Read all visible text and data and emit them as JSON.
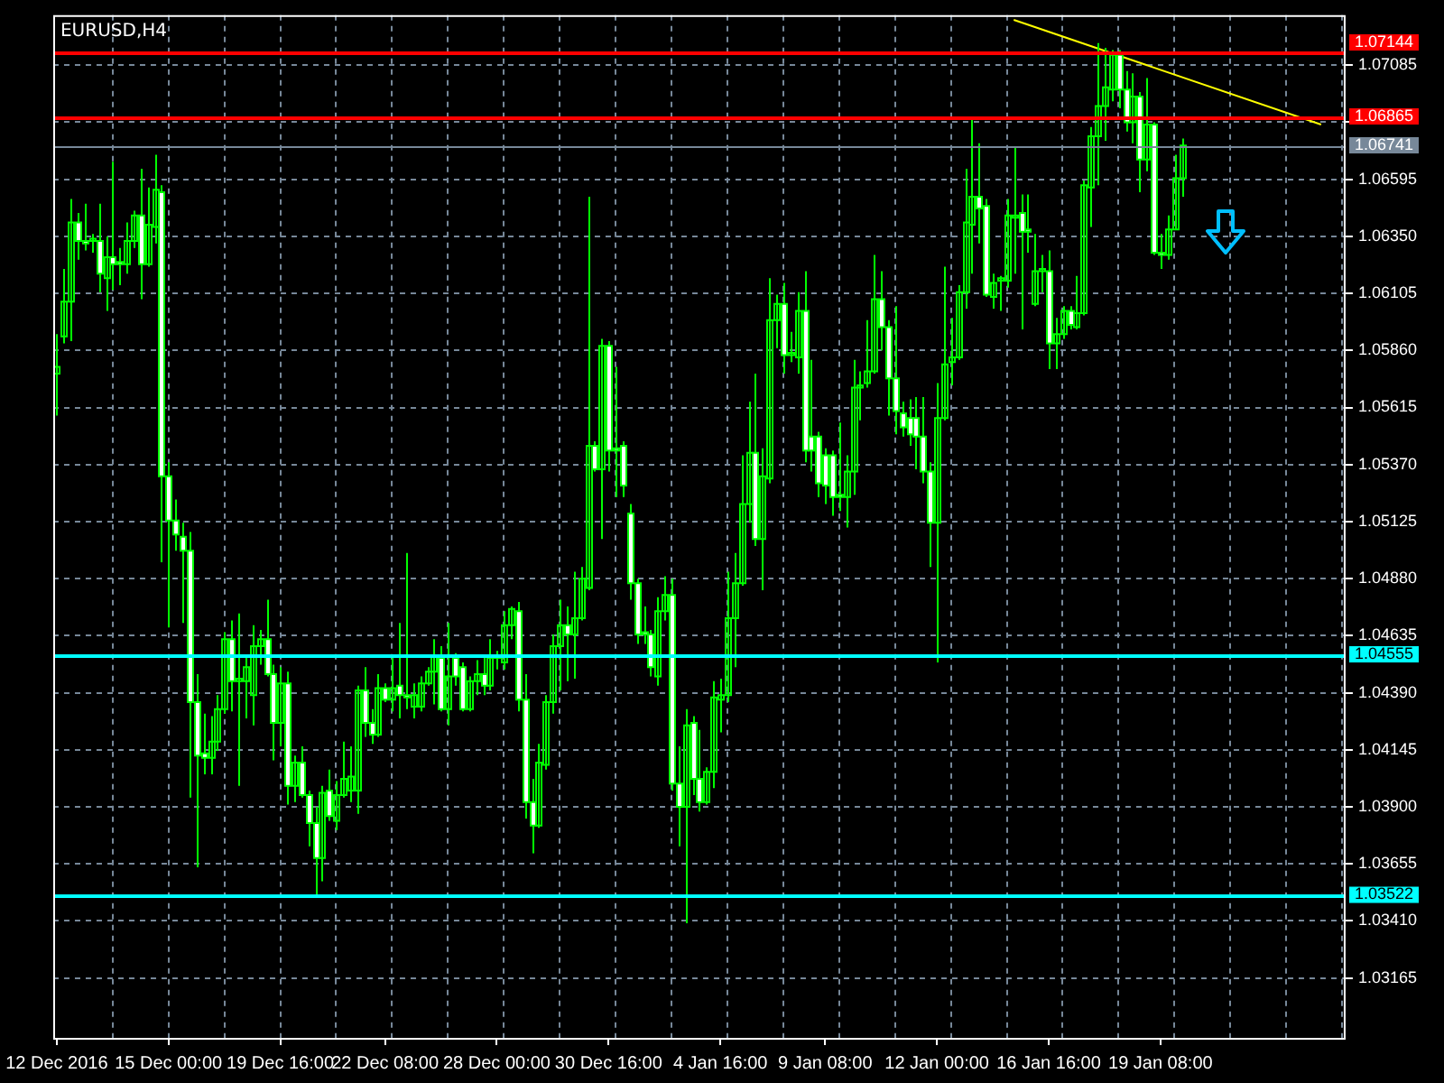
{
  "chart_data": {
    "type": "candlestick",
    "title": "EURUSD,H4",
    "color": "#00ff00",
    "colors": [
      "#00ff00",
      "#00ff00",
      "#00ff00",
      "#ffffff",
      "#ffffff",
      "#00ff00",
      "#ffffff",
      "#00ff00",
      "#ffffff",
      "#ffffff",
      "#00ff00",
      "#00ff00",
      "#ffffff",
      "#00ff00",
      "#00ff00",
      "#ffffff",
      "#ffffff",
      "#ffffff",
      "#ffffff",
      "#ffffff",
      "#ffffff",
      "#ffffff",
      "#00ff00",
      "#00ff00",
      "#00ff00",
      "#ffffff",
      "#00ff00",
      "#00ff00",
      "#00ff00",
      "#00ff00",
      "#ffffff",
      "#ffffff",
      "#00ff00",
      "#ffffff",
      "#00ff00",
      "#ffffff",
      "#ffffff",
      "#ffffff",
      "#00ff00",
      "#ffffff",
      "#00ff00",
      "#00ff00",
      "#00ff00",
      "#00ff00",
      "#ffffff",
      "#ffffff",
      "#00ff00",
      "#ffffff",
      "#00ff00",
      "#ffffff",
      "#ffffff",
      "#00ff00",
      "#00ff00",
      "#00ff00",
      "#00ff00",
      "#ffffff",
      "#00ff00",
      "#ffffff",
      "#ffffff",
      "#00ff00",
      "#00ff00",
      "#ffffff",
      "#00ff00",
      "#00ff00",
      "#00ff00",
      "#00ff00",
      "#ffffff",
      "#ffffff",
      "#ffffff",
      "#00ff00",
      "#00ff00",
      "#00ff00",
      "#00ff00",
      "#ffffff",
      "#00ff00",
      "#00ff00",
      "#00ff00",
      "#ffffff",
      "#00ff00",
      "#ffffff",
      "#ffffff",
      "#ffffff",
      "#ffffff",
      "#ffffff",
      "#ffffff",
      "#ffffff",
      "#00ff00",
      "#00ff00",
      "#ffffff",
      "#ffffff",
      "#00ff00",
      "#ffffff",
      "#ffffff",
      "#00ff00",
      "#00ff00",
      "#00ff00",
      "#00ff00",
      "#00ff00",
      "#00ff00",
      "#00ff00",
      "#ffffff",
      "#00ff00",
      "#00ff00",
      "#00ff00",
      "#ffffff",
      "#00ff00",
      "#00ff00",
      "#ffffff",
      "#ffffff",
      "#ffffff",
      "#ffffff",
      "#ffffff",
      "#ffffff",
      "#00ff00",
      "#00ff00",
      "#00ff00",
      "#00ff00",
      "#00ff00",
      "#ffffff",
      "#ffffff",
      "#ffffff",
      "#ffffff",
      "#ffffff",
      "#ffffff",
      "#ffffff",
      "#ffffff",
      "#00ff00",
      "#00ff00",
      "#00ff00",
      "#00ff00",
      "#00ff00",
      "#00ff00",
      "#ffffff",
      "#ffffff",
      "#00ff00",
      "#00ff00",
      "#00ff00",
      "#00ff00",
      "#ffffff",
      "#ffffff",
      "#00ff00",
      "#00ff00",
      "#ffffff",
      "#00ff00",
      "#00ff00",
      "#ffffff",
      "#00ff00",
      "#00ff00",
      "#00ff00",
      "#00ff00",
      "#00ff00",
      "#00ff00",
      "#ffffff",
      "#ffffff",
      "#00ff00",
      "#ffffff",
      "#00ff00",
      "#ffffff",
      "#ffffff",
      "#00ff00",
      "#00ff00",
      "#00ff00",
      null,
      null,
      null,
      null,
      null,
      null,
      null,
      null,
      null,
      null,
      null,
      null,
      null,
      null,
      null,
      null,
      null,
      null,
      null,
      null,
      null,
      null,
      null
    ],
    "categories": [
      "12 Dec 2016",
      null,
      null,
      null,
      null,
      null,
      null,
      null,
      null,
      null,
      null,
      null,
      null,
      null,
      null,
      null,
      "15 Dec 00:00",
      null,
      null,
      null,
      null,
      null,
      null,
      null,
      null,
      null,
      null,
      null,
      null,
      null,
      null,
      null,
      "19 Dec 16:00",
      null,
      null,
      null,
      null,
      null,
      null,
      null,
      null,
      null,
      null,
      null,
      null,
      null,
      null,
      "22 Dec 08:00",
      null,
      null,
      null,
      null,
      null,
      null,
      null,
      null,
      null,
      null,
      null,
      null,
      null,
      null,
      null,
      "28 Dec 00:00",
      null,
      null,
      null,
      null,
      null,
      null,
      null,
      null,
      null,
      null,
      null,
      null,
      null,
      null,
      null,
      "30 Dec 16:00",
      null,
      null,
      null,
      null,
      null,
      null,
      null,
      null,
      null,
      null,
      null,
      null,
      null,
      null,
      null,
      "4 Jan 16:00",
      null,
      null,
      null,
      null,
      null,
      null,
      null,
      null,
      null,
      null,
      null,
      null,
      null,
      null,
      "9 Jan 08:00",
      null,
      null,
      null,
      null,
      null,
      null,
      null,
      null,
      null,
      null,
      null,
      null,
      null,
      null,
      null,
      "12 Jan 00:00",
      null,
      null,
      null,
      null,
      null,
      null,
      null,
      null,
      null,
      null,
      null,
      null,
      null,
      null,
      null,
      "16 Jan 16:00",
      null,
      null,
      null,
      null,
      null,
      null,
      null,
      null,
      null,
      null,
      null,
      null,
      null,
      null,
      null,
      "19 Jan 08:00",
      null,
      null,
      null,
      null,
      null,
      null,
      null,
      null,
      null,
      null,
      null,
      null,
      null,
      null,
      null,
      null,
      null,
      null,
      null,
      null,
      null,
      null,
      null,
      null,
      null,
      null
    ],
    "ohlc": [
      [
        1.0576,
        1.0593,
        1.0558,
        1.0579
      ],
      [
        1.0592,
        1.0621,
        1.0589,
        1.0607
      ],
      [
        1.0607,
        1.0651,
        1.059,
        1.0641
      ],
      [
        1.0641,
        1.0645,
        1.0625,
        1.0633
      ],
      [
        1.0633,
        1.0649,
        1.0629,
        1.0632
      ],
      [
        1.0633,
        1.0636,
        1.0628,
        1.0634
      ],
      [
        1.0633,
        1.0649,
        1.0611,
        1.0619
      ],
      [
        1.0617,
        1.0635,
        1.0603,
        1.0626
      ],
      [
        1.0626,
        1.0667,
        1.0612,
        1.0623
      ],
      [
        1.0624,
        1.063,
        1.0614,
        1.0623
      ],
      [
        1.0623,
        1.0641,
        1.0619,
        1.0633
      ],
      [
        1.0633,
        1.0646,
        1.063,
        1.0644
      ],
      [
        1.0644,
        1.0664,
        1.0608,
        1.0623
      ],
      [
        1.0623,
        1.0656,
        1.0622,
        1.064
      ],
      [
        1.0639,
        1.067,
        1.0632,
        1.0655
      ],
      [
        1.0654,
        1.0657,
        1.0495,
        1.0532
      ],
      [
        1.0532,
        1.0538,
        1.0467,
        1.0513
      ],
      [
        1.0513,
        1.0522,
        1.05,
        1.0507
      ],
      [
        1.0506,
        1.0512,
        1.0469,
        1.05
      ],
      [
        1.05,
        1.0508,
        1.0394,
        1.0435
      ],
      [
        1.0435,
        1.0447,
        1.0364,
        1.0412
      ],
      [
        1.0413,
        1.043,
        1.0404,
        1.0411
      ],
      [
        1.0411,
        1.0429,
        1.0404,
        1.0418
      ],
      [
        1.0418,
        1.0438,
        1.0414,
        1.0432
      ],
      [
        1.0432,
        1.0465,
        1.043,
        1.0462
      ],
      [
        1.0462,
        1.047,
        1.0431,
        1.0444
      ],
      [
        1.0444,
        1.0473,
        1.0399,
        1.0445
      ],
      [
        1.0444,
        1.0454,
        1.0428,
        1.045
      ],
      [
        1.0438,
        1.0468,
        1.0425,
        1.0459
      ],
      [
        1.0459,
        1.0466,
        1.0451,
        1.0462
      ],
      [
        1.0462,
        1.0479,
        1.0446,
        1.0447
      ],
      [
        1.0447,
        1.0451,
        1.041,
        1.0426
      ],
      [
        1.0426,
        1.045,
        1.0416,
        1.0443
      ],
      [
        1.0443,
        1.0448,
        1.0391,
        1.0399
      ],
      [
        1.0399,
        1.0412,
        1.0392,
        1.0409
      ],
      [
        1.0409,
        1.0416,
        1.0394,
        1.0395
      ],
      [
        1.0395,
        1.0397,
        1.0373,
        1.0383
      ],
      [
        1.0383,
        1.039,
        1.0351,
        1.0368
      ],
      [
        1.0368,
        1.0399,
        1.0358,
        1.0396
      ],
      [
        1.0397,
        1.0406,
        1.0384,
        1.0386
      ],
      [
        1.0384,
        1.0401,
        1.038,
        1.0395
      ],
      [
        1.0395,
        1.0418,
        1.0394,
        1.0402
      ],
      [
        1.0397,
        1.0416,
        1.0392,
        1.0403
      ],
      [
        1.0397,
        1.0442,
        1.0387,
        1.044
      ],
      [
        1.044,
        1.045,
        1.042,
        1.0426
      ],
      [
        1.0426,
        1.0432,
        1.0417,
        1.0421
      ],
      [
        1.0421,
        1.0447,
        1.042,
        1.0441
      ],
      [
        1.0441,
        1.0443,
        1.0435,
        1.0436
      ],
      [
        1.0436,
        1.0455,
        1.0431,
        1.0441
      ],
      [
        1.0442,
        1.0469,
        1.0428,
        1.0438
      ],
      [
        1.0438,
        1.0499,
        1.0432,
        1.0437
      ],
      [
        1.0433,
        1.0443,
        1.0428,
        1.0438
      ],
      [
        1.0433,
        1.0446,
        1.0431,
        1.0443
      ],
      [
        1.0443,
        1.045,
        1.0442,
        1.0448
      ],
      [
        1.0448,
        1.0462,
        1.0434,
        1.0455
      ],
      [
        1.0454,
        1.0459,
        1.0431,
        1.0432
      ],
      [
        1.0432,
        1.0469,
        1.0425,
        1.0446
      ],
      [
        1.0454,
        1.0456,
        1.0442,
        1.0446
      ],
      [
        1.045,
        1.0452,
        1.0431,
        1.0432
      ],
      [
        1.0432,
        1.0446,
        1.0431,
        1.0444
      ],
      [
        1.0444,
        1.0453,
        1.0438,
        1.0447
      ],
      [
        1.0447,
        1.0454,
        1.0438,
        1.0442
      ],
      [
        1.0442,
        1.0462,
        1.044,
        1.0454
      ],
      [
        1.0454,
        1.0457,
        1.0449,
        1.0455
      ],
      [
        1.0452,
        1.0474,
        1.0449,
        1.0468
      ],
      [
        1.0468,
        1.0476,
        1.0462,
        1.0475
      ],
      [
        1.0474,
        1.0478,
        1.0431,
        1.0436
      ],
      [
        1.0436,
        1.0447,
        1.0385,
        1.0392
      ],
      [
        1.0392,
        1.0402,
        1.037,
        1.0382
      ],
      [
        1.0382,
        1.0417,
        1.0381,
        1.0409
      ],
      [
        1.0408,
        1.0438,
        1.0406,
        1.0435
      ],
      [
        1.0435,
        1.0464,
        1.043,
        1.0459
      ],
      [
        1.0459,
        1.0479,
        1.044,
        1.0468
      ],
      [
        1.0468,
        1.0476,
        1.0444,
        1.0464
      ],
      [
        1.0464,
        1.0491,
        1.0445,
        1.0471
      ],
      [
        1.0471,
        1.0493,
        1.047,
        1.0488
      ],
      [
        1.0484,
        1.0652,
        1.0483,
        1.0545
      ],
      [
        1.0545,
        1.0547,
        1.0534,
        1.0535
      ],
      [
        1.0535,
        1.0591,
        1.0505,
        1.0588
      ],
      [
        1.0588,
        1.059,
        1.0534,
        1.0543
      ],
      [
        1.0544,
        1.0579,
        1.0523,
        1.0543
      ],
      [
        1.0545,
        1.0547,
        1.0523,
        1.0528
      ],
      [
        1.0516,
        1.052,
        1.0479,
        1.0486
      ],
      [
        1.0486,
        1.0488,
        1.046,
        1.0464
      ],
      [
        1.0465,
        1.0476,
        1.046,
        1.0464
      ],
      [
        1.0464,
        1.0466,
        1.0446,
        1.045
      ],
      [
        1.0446,
        1.048,
        1.0442,
        1.0474
      ],
      [
        1.0474,
        1.0489,
        1.047,
        1.0481
      ],
      [
        1.0481,
        1.0488,
        1.0397,
        1.04
      ],
      [
        1.04,
        1.0416,
        1.0373,
        1.039
      ],
      [
        1.039,
        1.0432,
        1.034,
        1.0425
      ],
      [
        1.0426,
        1.0429,
        1.0395,
        1.0402
      ],
      [
        1.0402,
        1.0423,
        1.0388,
        1.0392
      ],
      [
        1.0392,
        1.0407,
        1.0391,
        1.0405
      ],
      [
        1.0405,
        1.0444,
        1.0398,
        1.0437
      ],
      [
        1.0436,
        1.0445,
        1.0422,
        1.0438
      ],
      [
        1.0438,
        1.0491,
        1.0435,
        1.0471
      ],
      [
        1.0471,
        1.0499,
        1.045,
        1.0486
      ],
      [
        1.0486,
        1.0541,
        1.0485,
        1.052
      ],
      [
        1.052,
        1.0564,
        1.0512,
        1.0542
      ],
      [
        1.0542,
        1.0576,
        1.0502,
        1.0505
      ],
      [
        1.0505,
        1.0544,
        1.0483,
        1.0532
      ],
      [
        1.0531,
        1.0617,
        1.0529,
        1.0599
      ],
      [
        1.0599,
        1.061,
        1.0587,
        1.0606
      ],
      [
        1.0606,
        1.0615,
        1.0576,
        1.0584
      ],
      [
        1.0584,
        1.0594,
        1.0581,
        1.0585
      ],
      [
        1.0583,
        1.0611,
        1.0576,
        1.0603
      ],
      [
        1.0603,
        1.062,
        1.0538,
        1.0543
      ],
      [
        1.0549,
        1.0582,
        1.0534,
        1.0543
      ],
      [
        1.0549,
        1.0551,
        1.0523,
        1.0529
      ],
      [
        1.0541,
        1.0544,
        1.052,
        1.0528
      ],
      [
        1.0541,
        1.0543,
        1.0515,
        1.0523
      ],
      [
        1.0524,
        1.0555,
        1.0517,
        1.0523
      ],
      [
        1.0523,
        1.0541,
        1.051,
        1.0534
      ],
      [
        1.0534,
        1.0582,
        1.0524,
        1.057
      ],
      [
        1.057,
        1.0577,
        1.0556,
        1.0571
      ],
      [
        1.0572,
        1.0599,
        1.057,
        1.0577
      ],
      [
        1.0577,
        1.0627,
        1.0576,
        1.0608
      ],
      [
        1.0608,
        1.062,
        1.0586,
        1.0596
      ],
      [
        1.0596,
        1.0599,
        1.0558,
        1.0574
      ],
      [
        1.0574,
        1.0605,
        1.055,
        1.056
      ],
      [
        1.0559,
        1.0564,
        1.0549,
        1.0553
      ],
      [
        1.0557,
        1.0565,
        1.0545,
        1.055
      ],
      [
        1.0557,
        1.0566,
        1.0535,
        1.0549
      ],
      [
        1.0549,
        1.0566,
        1.0529,
        1.0534
      ],
      [
        1.0534,
        1.0538,
        1.0493,
        1.0512
      ],
      [
        1.0512,
        1.0572,
        1.0452,
        1.0557
      ],
      [
        1.0557,
        1.0622,
        1.0556,
        1.058
      ],
      [
        1.0581,
        1.06,
        1.0571,
        1.0583
      ],
      [
        1.0583,
        1.0614,
        1.0582,
        1.0611
      ],
      [
        1.0611,
        1.0664,
        1.0604,
        1.0641
      ],
      [
        1.064,
        1.0685,
        1.0619,
        1.0652
      ],
      [
        1.0652,
        1.0675,
        1.0632,
        1.0647
      ],
      [
        1.0648,
        1.0651,
        1.0609,
        1.061
      ],
      [
        1.0609,
        1.0619,
        1.0604,
        1.0615
      ],
      [
        1.0616,
        1.0618,
        1.0603,
        1.0617
      ],
      [
        1.0616,
        1.0651,
        1.0613,
        1.0644
      ],
      [
        1.0643,
        1.0673,
        1.0619,
        1.0644
      ],
      [
        1.0645,
        1.0653,
        1.0595,
        1.0637
      ],
      [
        1.0638,
        1.0653,
        1.0628,
        1.0637
      ],
      [
        1.0606,
        1.0636,
        1.0605,
        1.062
      ],
      [
        1.062,
        1.0627,
        1.0611,
        1.0621
      ],
      [
        1.062,
        1.0629,
        1.0578,
        1.0589
      ],
      [
        1.0589,
        1.06,
        1.0578,
        1.0593
      ],
      [
        1.0593,
        1.0605,
        1.0591,
        1.0603
      ],
      [
        1.0603,
        1.0605,
        1.0595,
        1.0597
      ],
      [
        1.0596,
        1.0618,
        1.0595,
        1.0602
      ],
      [
        1.0602,
        1.0659,
        1.0601,
        1.0657
      ],
      [
        1.0656,
        1.0682,
        1.0639,
        1.0678
      ],
      [
        1.0678,
        1.0718,
        1.0657,
        1.0691
      ],
      [
        1.0691,
        1.0716,
        1.0676,
        1.0699
      ],
      [
        1.0698,
        1.0715,
        1.0693,
        1.0713
      ],
      [
        1.0713,
        1.0715,
        1.069,
        1.0698
      ],
      [
        1.0698,
        1.0706,
        1.068,
        1.0684
      ],
      [
        1.0684,
        1.0705,
        1.0675,
        1.0695
      ],
      [
        1.0695,
        1.0697,
        1.0654,
        1.0668
      ],
      [
        1.0668,
        1.0703,
        1.0663,
        1.0683
      ],
      [
        1.0683,
        1.0684,
        1.0627,
        1.0628
      ],
      [
        1.0628,
        1.0636,
        1.0621,
        1.0627
      ],
      [
        1.0627,
        1.0644,
        1.0625,
        1.0638
      ],
      [
        1.0638,
        1.067,
        1.0638,
        1.066
      ],
      [
        1.066,
        1.0677,
        1.0652,
        1.0674
      ],
      null,
      null,
      null,
      null,
      null,
      null,
      null,
      null,
      null,
      null,
      null,
      null,
      null,
      null,
      null,
      null,
      null,
      null,
      null,
      null,
      null,
      null,
      null
    ],
    "series": [
      {
        "type": "line",
        "color": "#ffff00",
        "values": [
          null,
          null,
          null,
          null,
          null,
          null,
          null,
          null,
          null,
          null,
          null,
          null,
          null,
          null,
          null,
          null,
          null,
          null,
          null,
          null,
          null,
          null,
          null,
          null,
          null,
          null,
          null,
          null,
          null,
          null,
          null,
          null,
          null,
          null,
          null,
          null,
          null,
          null,
          null,
          null,
          null,
          null,
          null,
          null,
          null,
          null,
          null,
          null,
          null,
          null,
          null,
          null,
          null,
          null,
          null,
          null,
          null,
          null,
          null,
          null,
          null,
          null,
          null,
          null,
          null,
          null,
          null,
          null,
          null,
          null,
          null,
          null,
          null,
          null,
          null,
          null,
          null,
          null,
          null,
          null,
          null,
          null,
          null,
          null,
          null,
          null,
          null,
          null,
          null,
          null,
          null,
          null,
          null,
          null,
          null,
          null,
          null,
          null,
          null,
          null,
          null,
          null,
          null,
          null,
          null,
          null,
          null,
          null,
          null,
          null,
          null,
          null,
          null,
          null,
          null,
          null,
          null,
          null,
          null,
          null,
          null,
          null,
          null,
          null,
          null,
          null,
          null,
          null,
          null,
          null,
          null,
          null,
          null,
          null,
          null,
          null,
          null,
          1.0728,
          null,
          null,
          null,
          null,
          null,
          null,
          null,
          null,
          null,
          null,
          null,
          null,
          null,
          null,
          null,
          null,
          null,
          null,
          null,
          null,
          null,
          null,
          null,
          null,
          null,
          null,
          null,
          null,
          null,
          null,
          null,
          null,
          null,
          null,
          null,
          null,
          null,
          null,
          null,
          null,
          null,
          null,
          null,
          1.0683,
          null,
          null,
          null
        ]
      }
    ],
    "ylim": [
      1.029,
      1.073
    ],
    "yticks": [
      1.03165,
      {
        "value": 1.0341,
        "label": "1.03410"
      },
      1.03655,
      {
        "value": 1.039,
        "label": "1.03900"
      },
      1.04145,
      {
        "value": 1.0439,
        "label": "1.04390"
      },
      1.04635,
      {
        "value": 1.0488,
        "label": "1.04880"
      },
      1.05125,
      {
        "value": 1.0537,
        "label": "1.05370"
      },
      1.05615,
      {
        "value": 1.0586,
        "label": "1.05860"
      },
      1.06105,
      {
        "value": 1.0635,
        "label": "1.06350"
      },
      1.06595,
      {
        "value": 1.0684,
        "label": null
      },
      1.07085
    ],
    "ref_lines": [
      {
        "axis": "y",
        "value": 1.07144,
        "label": "1.07144",
        "color": "#ff0000"
      },
      {
        "axis": "y",
        "value": 1.06865,
        "label": "1.06865",
        "color": "#ff0000"
      },
      {
        "axis": "y",
        "value": 1.06741,
        "label": "1.06741",
        "color": "#778899"
      },
      {
        "axis": "y",
        "value": 1.04555,
        "label": "1.04555",
        "color": "#00ffff"
      },
      {
        "axis": "y",
        "value": 1.03522,
        "label": "1.03522",
        "color": "#00ffff"
      }
    ],
    "grid": true,
    "marker": "none"
  }
}
